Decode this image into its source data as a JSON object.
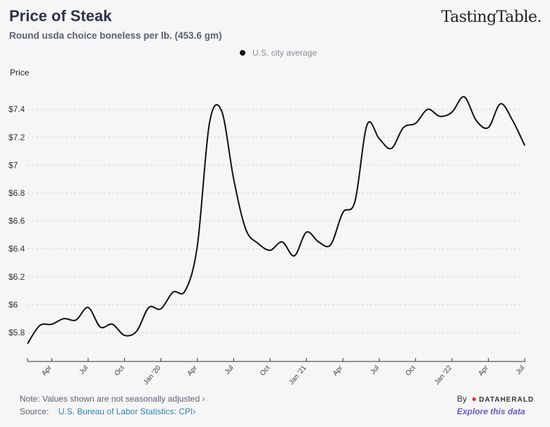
{
  "header": {
    "title": "Price of Steak",
    "subtitle": "Round usda choice boneless per lb. (453.6 gm)",
    "brand": "TastingTable."
  },
  "footer": {
    "note": "Note: Values shown are not seasonally adjusted ›",
    "source_label": "Source:",
    "source_link": "U.S. Bureau of Labor Statistics: CPI›",
    "by": "By",
    "by_brand": "DATAHERALD",
    "explore": "Explore this data"
  },
  "chart_data": {
    "type": "line",
    "title": "Price of Steak",
    "ylabel": "Price",
    "xlabel": "",
    "ylim": [
      5.7,
      7.55
    ],
    "yticks": [
      5.8,
      6.0,
      6.2,
      6.4,
      6.6,
      6.8,
      7.0,
      7.2,
      7.4
    ],
    "ytick_labels": [
      "$5.8",
      "$6",
      "$6.2",
      "$6.4",
      "$6.6",
      "$6.8",
      "$7",
      "$7.2",
      "$7.4"
    ],
    "xtick_labels": [
      "Apr",
      "Jul",
      "Oct",
      "Jan '20",
      "Apr",
      "Jul",
      "Oct",
      "Jan '21",
      "Apr",
      "Jul",
      "Oct",
      "Jan '22",
      "Apr",
      "Jul"
    ],
    "xtick_month_index": [
      2,
      5,
      8,
      11,
      14,
      17,
      20,
      23,
      26,
      29,
      32,
      35,
      38,
      41
    ],
    "grid": true,
    "legend": {
      "placement": "top-center",
      "entries": [
        "U.S. city average"
      ]
    },
    "x_start": "Feb 2019",
    "series": [
      {
        "name": "U.S. city average",
        "color": "#111111",
        "values": [
          5.72,
          5.85,
          5.86,
          5.9,
          5.89,
          5.98,
          5.84,
          5.86,
          5.78,
          5.81,
          5.98,
          5.97,
          6.09,
          6.1,
          6.42,
          7.3,
          7.39,
          6.9,
          6.54,
          6.44,
          6.39,
          6.45,
          6.35,
          6.52,
          6.45,
          6.43,
          6.66,
          6.74,
          7.29,
          7.19,
          7.12,
          7.27,
          7.3,
          7.4,
          7.35,
          7.38,
          7.49,
          7.32,
          7.27,
          7.44,
          7.32,
          7.14
        ]
      }
    ]
  }
}
